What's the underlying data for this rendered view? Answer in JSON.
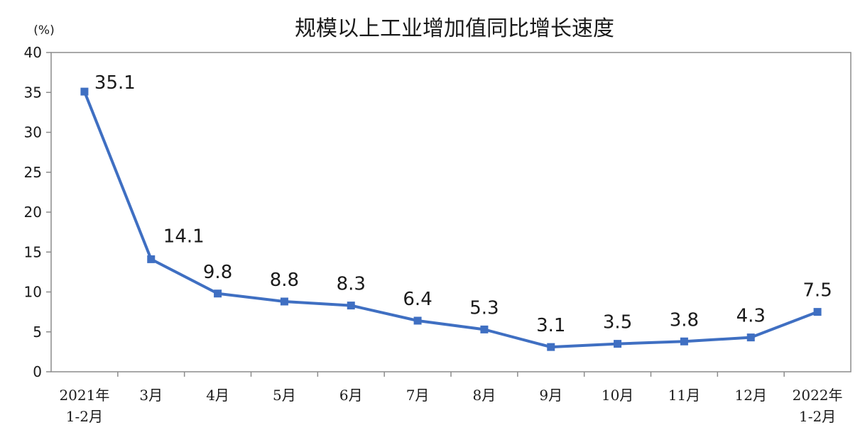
{
  "chart_data": {
    "type": "line",
    "title": "规模以上工业增加值同比增长速度",
    "ylabel": "(%)",
    "xlabel": "",
    "ylim": [
      0,
      40
    ],
    "yticks": [
      0,
      5,
      10,
      15,
      20,
      25,
      30,
      35,
      40
    ],
    "categories": [
      [
        "2021年",
        "1-2月"
      ],
      [
        "3月"
      ],
      [
        "4月"
      ],
      [
        "5月"
      ],
      [
        "6月"
      ],
      [
        "7月"
      ],
      [
        "8月"
      ],
      [
        "9月"
      ],
      [
        "10月"
      ],
      [
        "11月"
      ],
      [
        "12月"
      ],
      [
        "2022年",
        "1-2月"
      ]
    ],
    "values": [
      35.1,
      14.1,
      9.8,
      8.8,
      8.3,
      6.4,
      5.3,
      3.1,
      3.5,
      3.8,
      4.3,
      7.5
    ],
    "data_labels": [
      "35.1",
      "14.1",
      "9.8",
      "8.8",
      "8.3",
      "6.4",
      "5.3",
      "3.1",
      "3.5",
      "3.8",
      "4.3",
      "7.5"
    ],
    "grid": false,
    "legend": "none",
    "line_color": "#3f6fc2"
  }
}
